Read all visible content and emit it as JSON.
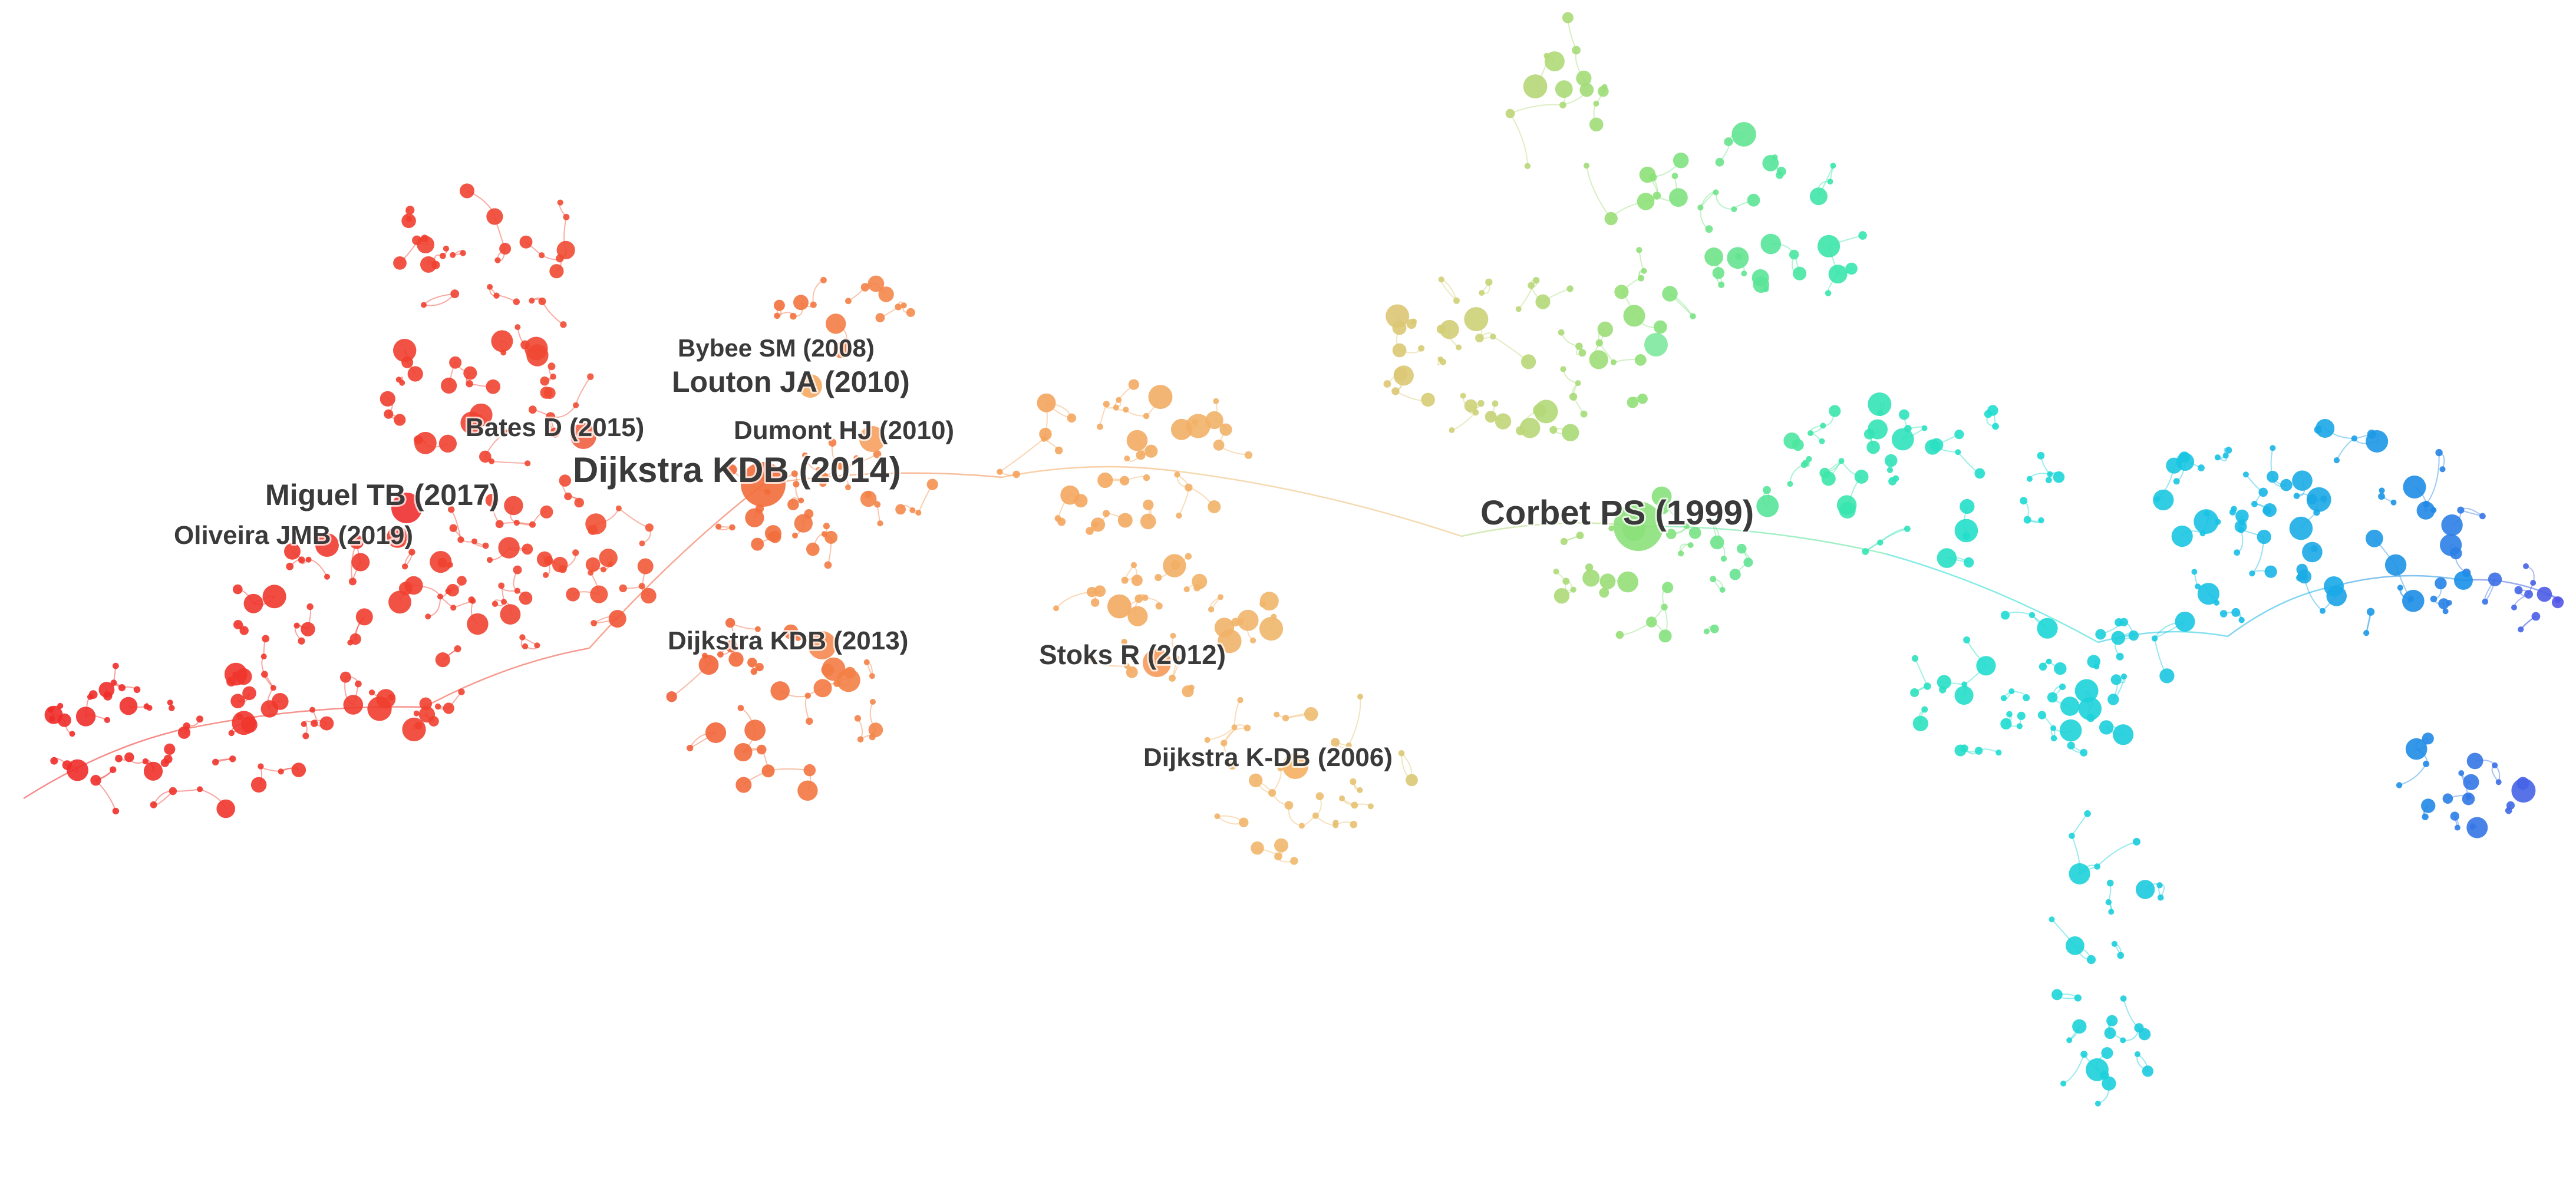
{
  "network": {
    "labels": [
      {
        "id": "dijkstra-2014",
        "text": "Dijkstra KDB (2014)",
        "rank": 1,
        "color": "#f26b3a"
      },
      {
        "id": "corbet-1999",
        "text": "Corbet PS (1999)",
        "rank": 1,
        "color": "#8ce07a"
      },
      {
        "id": "louton-2010",
        "text": "Louton JA (2010)",
        "rank": 2,
        "color": "#f5a860"
      },
      {
        "id": "miguel-2017",
        "text": "Miguel TB (2017)",
        "rank": 2,
        "color": "#ee3030"
      },
      {
        "id": "bybee-2008",
        "text": "Bybee SM (2008)",
        "rank": 3,
        "color": "#f5b870"
      },
      {
        "id": "bates-2015",
        "text": "Bates D (2015)",
        "rank": 3,
        "color": "#f06040"
      },
      {
        "id": "dumont-2010",
        "text": "Dumont HJ (2010)",
        "rank": 3,
        "color": "#f6a060"
      },
      {
        "id": "oliveira-2019",
        "text": "Oliveira JMB (2019)",
        "rank": 3,
        "color": "#ee3a30"
      },
      {
        "id": "dijkstra-2013",
        "text": "Dijkstra KDB (2013)",
        "rank": 3,
        "color": "#f58a50"
      },
      {
        "id": "stoks-2012",
        "text": "Stoks R (2012)",
        "rank": 3,
        "color": "#f59a5a"
      },
      {
        "id": "dijkstra-2006",
        "text": "Dijkstra K-DB (2006)",
        "rank": 3,
        "color": "#f5b060"
      }
    ],
    "colors": {
      "red": "#ee2a2a",
      "orange": "#f5a050",
      "yellow": "#e0c878",
      "green": "#8ce07a",
      "teal": "#30e8c0",
      "cyan": "#18c8e8",
      "blue": "#1890e8",
      "violet": "#5050e8"
    }
  }
}
